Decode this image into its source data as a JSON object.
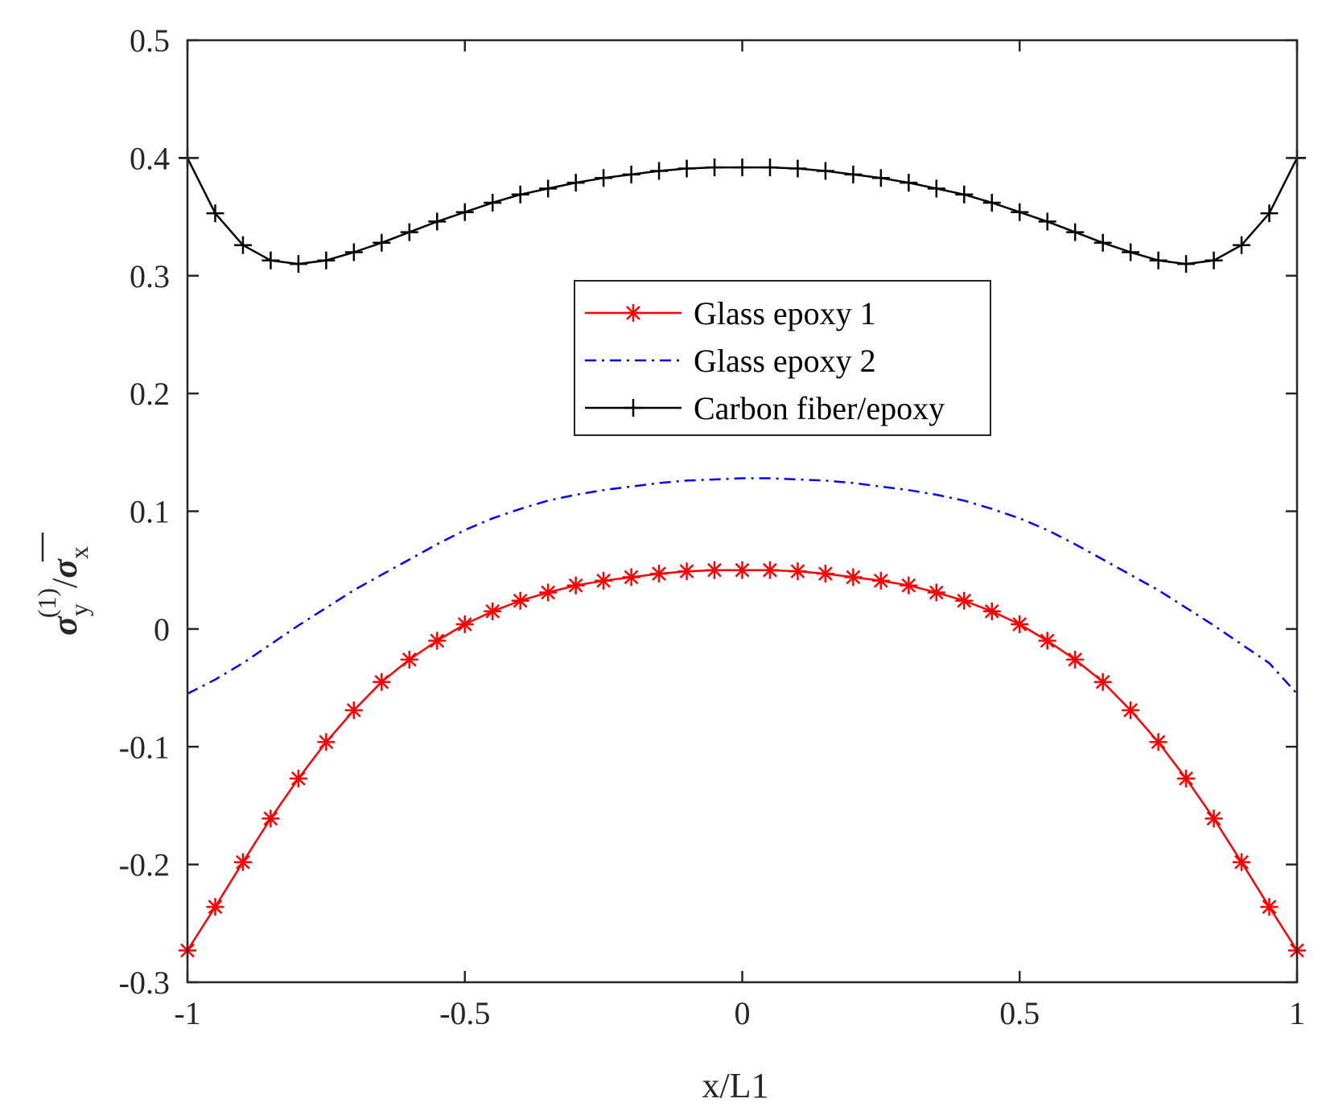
{
  "chart_data": {
    "type": "line",
    "title": "",
    "xlabel": "x/L1",
    "ylabel": {
      "symbol": "σ",
      "subscript": "y",
      "superscript": "(1)",
      "divider": "/",
      "denominator_symbol": "σ",
      "denominator_subscript": "x"
    },
    "xlim": [
      -1,
      1
    ],
    "ylim": [
      -0.3,
      0.5
    ],
    "xticks": [
      "-1",
      "-0.5",
      "0",
      "0.5",
      "1"
    ],
    "xtick_values": [
      -1,
      -0.5,
      0,
      0.5,
      1
    ],
    "yticks": [
      "-0.3",
      "-0.2",
      "-0.1",
      "0",
      "0.1",
      "0.2",
      "0.3",
      "0.4",
      "0.5"
    ],
    "ytick_values": [
      -0.3,
      -0.2,
      -0.1,
      0,
      0.1,
      0.2,
      0.3,
      0.4,
      0.5
    ],
    "grid": false,
    "legend_position": "center",
    "x": [
      -1,
      -0.95,
      -0.9,
      -0.85,
      -0.8,
      -0.75,
      -0.7,
      -0.65,
      -0.6,
      -0.55,
      -0.5,
      -0.45,
      -0.4,
      -0.35,
      -0.3,
      -0.25,
      -0.2,
      -0.15,
      -0.1,
      -0.05,
      0,
      0.05,
      0.1,
      0.15,
      0.2,
      0.25,
      0.3,
      0.35,
      0.4,
      0.45,
      0.5,
      0.55,
      0.6,
      0.65,
      0.7,
      0.75,
      0.8,
      0.85,
      0.9,
      0.95,
      1
    ],
    "series": [
      {
        "name": "Glass epoxy 1",
        "color": "#ff0000",
        "line": "solid",
        "marker": "asterisk",
        "values": [
          -0.273,
          -0.236,
          -0.198,
          -0.161,
          -0.127,
          -0.096,
          -0.069,
          -0.045,
          -0.026,
          -0.01,
          0.004,
          0.015,
          0.024,
          0.031,
          0.037,
          0.041,
          0.044,
          0.047,
          0.049,
          0.05,
          0.05,
          0.05,
          0.049,
          0.047,
          0.044,
          0.041,
          0.037,
          0.031,
          0.024,
          0.015,
          0.004,
          -0.01,
          -0.026,
          -0.045,
          -0.069,
          -0.096,
          -0.127,
          -0.161,
          -0.198,
          -0.236,
          -0.273
        ]
      },
      {
        "name": "Glass epoxy 2",
        "color": "#0000ff",
        "line": "dashdot",
        "marker": "none",
        "values": [
          -0.055,
          -0.043,
          -0.029,
          -0.013,
          0.003,
          0.018,
          0.033,
          0.046,
          0.059,
          0.072,
          0.084,
          0.094,
          0.102,
          0.109,
          0.114,
          0.118,
          0.121,
          0.124,
          0.126,
          0.127,
          0.128,
          0.128,
          0.127,
          0.126,
          0.124,
          0.121,
          0.118,
          0.114,
          0.109,
          0.102,
          0.094,
          0.084,
          0.072,
          0.059,
          0.046,
          0.033,
          0.018,
          0.003,
          -0.013,
          -0.029,
          -0.055
        ]
      },
      {
        "name": "Carbon fiber/epoxy",
        "color": "#000000",
        "line": "solid",
        "marker": "plus",
        "values": [
          0.4,
          0.353,
          0.326,
          0.313,
          0.31,
          0.313,
          0.32,
          0.328,
          0.337,
          0.346,
          0.354,
          0.362,
          0.369,
          0.374,
          0.379,
          0.383,
          0.386,
          0.389,
          0.391,
          0.392,
          0.392,
          0.392,
          0.391,
          0.389,
          0.386,
          0.383,
          0.379,
          0.374,
          0.369,
          0.362,
          0.354,
          0.346,
          0.337,
          0.328,
          0.32,
          0.313,
          0.31,
          0.313,
          0.326,
          0.353,
          0.4
        ]
      }
    ]
  }
}
